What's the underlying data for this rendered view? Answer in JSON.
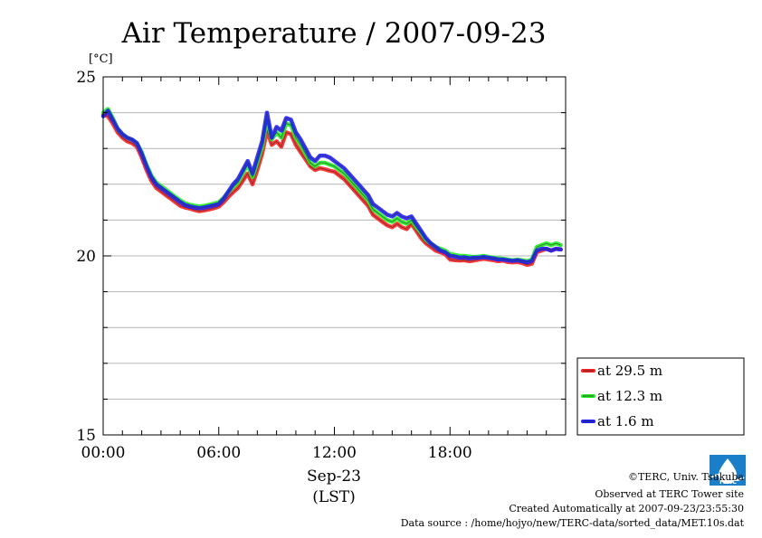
{
  "chart_data": {
    "type": "line",
    "title": "Air Temperature / 2007-09-23",
    "ylabel": "[°C]",
    "ylim": [
      15,
      25
    ],
    "yticks": [
      15,
      20,
      25
    ],
    "yminor_step": 1,
    "xlim": [
      0,
      24
    ],
    "xticks": [
      0,
      6,
      12,
      18
    ],
    "xtick_labels": [
      "00:00",
      "06:00",
      "12:00",
      "18:00"
    ],
    "xlabel_date": "Sep-23",
    "xlabel_tz": "(LST)",
    "grid": "horizontal",
    "legend_placement": "bottom-right",
    "x_hours": [
      0,
      0.25,
      0.5,
      0.75,
      1,
      1.25,
      1.5,
      1.75,
      2,
      2.25,
      2.5,
      2.75,
      3,
      3.25,
      3.5,
      3.75,
      4,
      4.25,
      4.5,
      4.75,
      5,
      5.25,
      5.5,
      5.75,
      6,
      6.25,
      6.5,
      6.75,
      7,
      7.25,
      7.5,
      7.75,
      8,
      8.25,
      8.5,
      8.75,
      9,
      9.25,
      9.5,
      9.75,
      10,
      10.25,
      10.5,
      10.75,
      11,
      11.25,
      11.5,
      11.75,
      12,
      12.25,
      12.5,
      12.75,
      13,
      13.25,
      13.5,
      13.75,
      14,
      14.25,
      14.5,
      14.75,
      15,
      15.25,
      15.5,
      15.75,
      16,
      16.25,
      16.5,
      16.75,
      17,
      17.25,
      17.5,
      17.75,
      18,
      18.25,
      18.5,
      18.75,
      19,
      19.25,
      19.5,
      19.75,
      20,
      20.25,
      20.5,
      20.75,
      21,
      21.25,
      21.5,
      21.75,
      22,
      22.25,
      22.5,
      22.75,
      23,
      23.25,
      23.5,
      23.75
    ],
    "series": [
      {
        "name": "at 29.5 m",
        "color": "#ff2020",
        "values": [
          23.95,
          23.9,
          23.7,
          23.45,
          23.3,
          23.2,
          23.15,
          23.05,
          22.75,
          22.4,
          22.1,
          21.9,
          21.8,
          21.7,
          21.6,
          21.5,
          21.4,
          21.35,
          21.32,
          21.28,
          21.25,
          21.27,
          21.3,
          21.33,
          21.38,
          21.5,
          21.65,
          21.78,
          21.9,
          22.1,
          22.3,
          22.0,
          22.4,
          22.85,
          23.5,
          23.1,
          23.2,
          23.05,
          23.45,
          23.4,
          23.1,
          22.9,
          22.7,
          22.5,
          22.4,
          22.45,
          22.42,
          22.38,
          22.35,
          22.25,
          22.15,
          22.0,
          21.85,
          21.7,
          21.55,
          21.4,
          21.15,
          21.05,
          20.95,
          20.85,
          20.8,
          20.9,
          20.8,
          20.75,
          20.9,
          20.7,
          20.5,
          20.35,
          20.25,
          20.15,
          20.1,
          20.05,
          19.9,
          19.88,
          19.87,
          19.88,
          19.85,
          19.87,
          19.9,
          19.92,
          19.9,
          19.88,
          19.85,
          19.87,
          19.83,
          19.82,
          19.83,
          19.8,
          19.75,
          19.78,
          20.1,
          20.15,
          20.2,
          20.15,
          20.2,
          20.18
        ]
      },
      {
        "name": "at 12.3 m",
        "color": "#20ee20",
        "values": [
          24.0,
          24.1,
          23.85,
          23.55,
          23.4,
          23.3,
          23.25,
          23.15,
          22.9,
          22.55,
          22.25,
          22.05,
          21.95,
          21.85,
          21.75,
          21.65,
          21.55,
          21.47,
          21.43,
          21.4,
          21.38,
          21.4,
          21.43,
          21.46,
          21.5,
          21.62,
          21.78,
          21.92,
          22.05,
          22.3,
          22.55,
          22.2,
          22.6,
          23.05,
          23.8,
          23.25,
          23.45,
          23.3,
          23.7,
          23.65,
          23.3,
          23.1,
          22.85,
          22.6,
          22.5,
          22.6,
          22.6,
          22.55,
          22.5,
          22.4,
          22.3,
          22.15,
          22.0,
          21.85,
          21.7,
          21.55,
          21.3,
          21.2,
          21.1,
          21.0,
          20.95,
          21.05,
          20.95,
          20.9,
          21.0,
          20.8,
          20.65,
          20.45,
          20.35,
          20.25,
          20.2,
          20.15,
          20.05,
          20.03,
          20.0,
          20.0,
          19.98,
          19.97,
          19.98,
          20.0,
          19.97,
          19.95,
          19.93,
          19.92,
          19.9,
          19.88,
          19.9,
          19.88,
          19.85,
          19.9,
          20.25,
          20.3,
          20.35,
          20.3,
          20.35,
          20.3
        ]
      },
      {
        "name": "at 1.6 m",
        "color": "#2020ff",
        "values": [
          23.9,
          24.05,
          23.8,
          23.55,
          23.4,
          23.3,
          23.25,
          23.15,
          22.85,
          22.5,
          22.2,
          22.0,
          21.9,
          21.8,
          21.7,
          21.6,
          21.5,
          21.42,
          21.38,
          21.35,
          21.33,
          21.35,
          21.38,
          21.41,
          21.45,
          21.6,
          21.8,
          22.0,
          22.15,
          22.4,
          22.65,
          22.3,
          22.75,
          23.2,
          24.0,
          23.3,
          23.6,
          23.5,
          23.85,
          23.8,
          23.45,
          23.25,
          23.0,
          22.75,
          22.65,
          22.8,
          22.8,
          22.75,
          22.65,
          22.55,
          22.45,
          22.3,
          22.15,
          22.0,
          21.85,
          21.7,
          21.45,
          21.35,
          21.25,
          21.15,
          21.1,
          21.2,
          21.1,
          21.05,
          21.1,
          20.9,
          20.7,
          20.5,
          20.35,
          20.25,
          20.15,
          20.1,
          20.0,
          19.98,
          19.95,
          19.96,
          19.93,
          19.95,
          19.95,
          19.97,
          19.95,
          19.93,
          19.9,
          19.9,
          19.88,
          19.86,
          19.88,
          19.85,
          19.82,
          19.86,
          20.15,
          20.2,
          20.2,
          20.15,
          20.2,
          20.18
        ]
      }
    ]
  },
  "footer": {
    "copyright": "©TERC, Univ. Tsukuba",
    "observed": "Observed at TERC Tower site",
    "created": "Created Automatically at 2007-09-23/23:55:30",
    "source": "Data source : /home/hojyo/new/TERC-data/sorted_data/MET.10s.dat"
  },
  "logo": {
    "text": "TERC",
    "color": "#1a7fc8"
  }
}
